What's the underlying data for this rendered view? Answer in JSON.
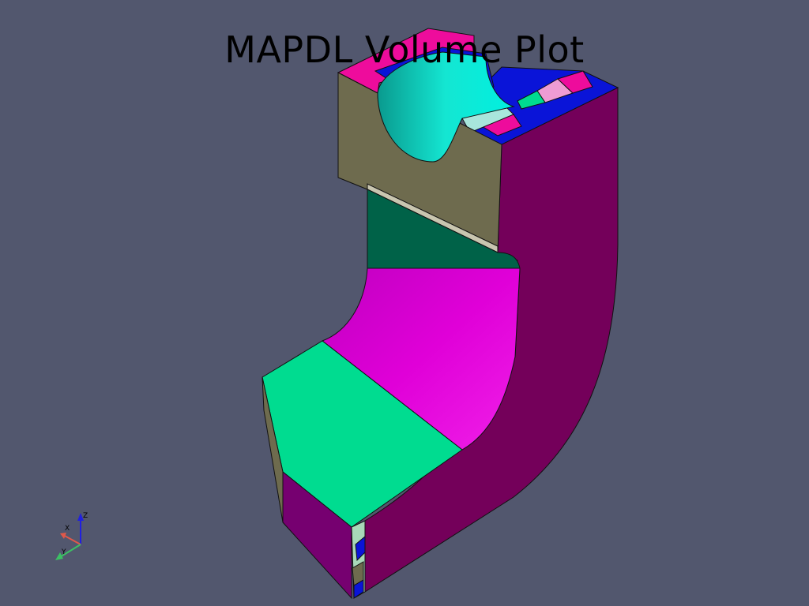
{
  "title": "MAPDL Volume Plot",
  "colors": {
    "background": "#52576e",
    "olive_face": "#6e6b4e",
    "cyan_bore": "#14e6d2",
    "magenta_side": "#74005a",
    "dark_green_face": "#006248",
    "mint_face": "#00dc90",
    "magenta_curve": "#e000d8",
    "purple_end": "#760070",
    "pink_top": "#ee0c9c",
    "blue_edge": "#0a14d8",
    "light_pink": "#ee9cd4",
    "axis_x": "#e0584a",
    "axis_y": "#3cc064",
    "axis_z": "#2020e0"
  },
  "axes_triad": {
    "x_label": "X",
    "y_label": "Y",
    "z_label": "Z"
  }
}
